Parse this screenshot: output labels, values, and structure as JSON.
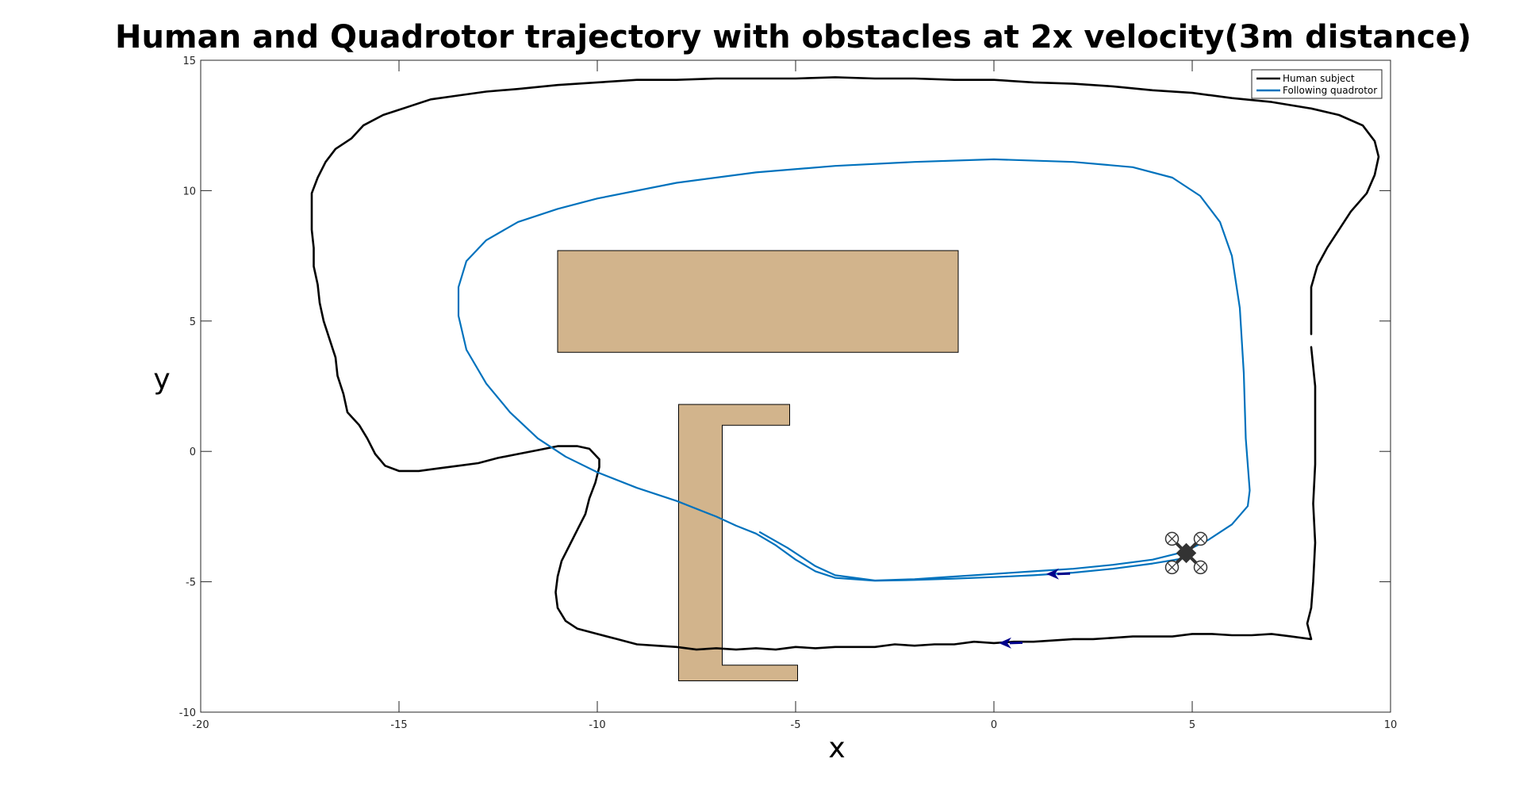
{
  "chart_data": {
    "type": "line",
    "title": "Human and Quadrotor trajectory with obstacles at 2x velocity(3m distance)",
    "xlabel": "x",
    "ylabel": "y",
    "xlim": [
      -20,
      10
    ],
    "ylim": [
      -10,
      15
    ],
    "xticks": [
      -20,
      -15,
      -10,
      -5,
      0,
      5,
      10
    ],
    "yticks": [
      -10,
      -5,
      0,
      5,
      10,
      15
    ],
    "xtick_labels": [
      "-20",
      "-15",
      "-10",
      "-5",
      "0",
      "5",
      "10"
    ],
    "ytick_labels": [
      "-10",
      "-5",
      "0",
      "5",
      "10",
      "15"
    ],
    "grid": false,
    "box": true,
    "legend_position": "top-right",
    "series": [
      {
        "name": "Human subject",
        "color": "#000000",
        "points": [
          [
            8.0,
            4.0
          ],
          [
            8.1,
            2.5
          ],
          [
            8.1,
            1.0
          ],
          [
            8.1,
            -0.5
          ],
          [
            8.05,
            -2.0
          ],
          [
            8.1,
            -3.5
          ],
          [
            8.05,
            -5.0
          ],
          [
            8.0,
            -6.0
          ],
          [
            7.9,
            -6.6
          ],
          [
            8.0,
            -7.2
          ],
          [
            7.5,
            -7.1
          ],
          [
            7.0,
            -7.0
          ],
          [
            6.5,
            -7.05
          ],
          [
            6.0,
            -7.05
          ],
          [
            5.5,
            -7.0
          ],
          [
            5.0,
            -7.0
          ],
          [
            4.5,
            -7.1
          ],
          [
            4.0,
            -7.1
          ],
          [
            3.5,
            -7.1
          ],
          [
            3.0,
            -7.15
          ],
          [
            2.5,
            -7.2
          ],
          [
            2.0,
            -7.2
          ],
          [
            1.5,
            -7.25
          ],
          [
            1.0,
            -7.3
          ],
          [
            0.5,
            -7.3
          ],
          [
            0.0,
            -7.35
          ],
          [
            -0.5,
            -7.3
          ],
          [
            -1.0,
            -7.4
          ],
          [
            -1.5,
            -7.4
          ],
          [
            -2.0,
            -7.45
          ],
          [
            -2.5,
            -7.4
          ],
          [
            -3.0,
            -7.5
          ],
          [
            -3.5,
            -7.5
          ],
          [
            -4.0,
            -7.5
          ],
          [
            -4.5,
            -7.55
          ],
          [
            -5.0,
            -7.5
          ],
          [
            -5.5,
            -7.6
          ],
          [
            -6.0,
            -7.55
          ],
          [
            -6.5,
            -7.6
          ],
          [
            -7.0,
            -7.55
          ],
          [
            -7.5,
            -7.6
          ],
          [
            -8.0,
            -7.5
          ],
          [
            -8.5,
            -7.45
          ],
          [
            -9.0,
            -7.4
          ],
          [
            -9.5,
            -7.2
          ],
          [
            -10.0,
            -7.0
          ],
          [
            -10.5,
            -6.8
          ],
          [
            -10.8,
            -6.5
          ],
          [
            -11.0,
            -6.0
          ],
          [
            -11.05,
            -5.4
          ],
          [
            -11.0,
            -4.8
          ],
          [
            -10.9,
            -4.2
          ],
          [
            -10.7,
            -3.6
          ],
          [
            -10.5,
            -3.0
          ],
          [
            -10.3,
            -2.4
          ],
          [
            -10.2,
            -1.8
          ],
          [
            -10.05,
            -1.2
          ],
          [
            -9.95,
            -0.6
          ],
          [
            -9.95,
            -0.3
          ],
          [
            -10.2,
            0.1
          ],
          [
            -10.5,
            0.2
          ],
          [
            -11.0,
            0.2
          ],
          [
            -11.5,
            0.05
          ],
          [
            -12.0,
            -0.1
          ],
          [
            -12.5,
            -0.25
          ],
          [
            -13.0,
            -0.45
          ],
          [
            -13.5,
            -0.55
          ],
          [
            -14.0,
            -0.65
          ],
          [
            -14.5,
            -0.75
          ],
          [
            -15.0,
            -0.75
          ],
          [
            -15.35,
            -0.55
          ],
          [
            -15.6,
            -0.1
          ],
          [
            -15.8,
            0.5
          ],
          [
            -16.0,
            1.0
          ],
          [
            -16.3,
            1.5
          ],
          [
            -16.4,
            2.2
          ],
          [
            -16.55,
            2.9
          ],
          [
            -16.6,
            3.6
          ],
          [
            -16.75,
            4.3
          ],
          [
            -16.9,
            5.0
          ],
          [
            -17.0,
            5.7
          ],
          [
            -17.05,
            6.4
          ],
          [
            -17.15,
            7.1
          ],
          [
            -17.15,
            7.8
          ],
          [
            -17.2,
            8.5
          ],
          [
            -17.2,
            9.2
          ],
          [
            -17.2,
            9.9
          ],
          [
            -17.05,
            10.5
          ],
          [
            -16.85,
            11.1
          ],
          [
            -16.6,
            11.6
          ],
          [
            -16.2,
            12.0
          ],
          [
            -15.9,
            12.5
          ],
          [
            -15.4,
            12.9
          ],
          [
            -14.8,
            13.2
          ],
          [
            -14.2,
            13.5
          ],
          [
            -13.5,
            13.65
          ],
          [
            -12.8,
            13.8
          ],
          [
            -12.0,
            13.9
          ],
          [
            -11.0,
            14.05
          ],
          [
            -10.0,
            14.15
          ],
          [
            -9.0,
            14.25
          ],
          [
            -8.0,
            14.25
          ],
          [
            -7.0,
            14.3
          ],
          [
            -6.0,
            14.3
          ],
          [
            -5.0,
            14.3
          ],
          [
            -4.0,
            14.35
          ],
          [
            -3.0,
            14.3
          ],
          [
            -2.0,
            14.3
          ],
          [
            -1.0,
            14.25
          ],
          [
            0.0,
            14.25
          ],
          [
            1.0,
            14.15
          ],
          [
            2.0,
            14.1
          ],
          [
            3.0,
            14.0
          ],
          [
            4.0,
            13.85
          ],
          [
            5.0,
            13.75
          ],
          [
            6.0,
            13.55
          ],
          [
            7.0,
            13.4
          ],
          [
            8.0,
            13.15
          ],
          [
            8.7,
            12.9
          ],
          [
            9.3,
            12.5
          ],
          [
            9.6,
            11.9
          ],
          [
            9.7,
            11.3
          ],
          [
            9.6,
            10.6
          ],
          [
            9.4,
            9.9
          ],
          [
            9.0,
            9.2
          ],
          [
            8.7,
            8.5
          ],
          [
            8.4,
            7.8
          ],
          [
            8.15,
            7.1
          ],
          [
            8.0,
            6.3
          ],
          [
            8.0,
            5.3
          ],
          [
            8.0,
            4.5
          ]
        ]
      },
      {
        "name": "Following quadrotor",
        "color": "#0072BD",
        "points": [
          [
            4.8,
            -4.1
          ],
          [
            4.0,
            -4.3
          ],
          [
            3.0,
            -4.5
          ],
          [
            2.0,
            -4.65
          ],
          [
            1.0,
            -4.75
          ],
          [
            0.0,
            -4.82
          ],
          [
            -1.0,
            -4.88
          ],
          [
            -2.0,
            -4.93
          ],
          [
            -3.0,
            -4.96
          ],
          [
            -4.0,
            -4.85
          ],
          [
            -4.5,
            -4.6
          ],
          [
            -5.0,
            -4.15
          ],
          [
            -5.5,
            -3.6
          ],
          [
            -6.0,
            -3.15
          ],
          [
            -6.5,
            -2.85
          ],
          [
            -7.0,
            -2.5
          ],
          [
            -8.0,
            -1.9
          ],
          [
            -9.0,
            -1.4
          ],
          [
            -10.0,
            -0.8
          ],
          [
            -10.8,
            -0.2
          ],
          [
            -11.5,
            0.5
          ],
          [
            -12.2,
            1.5
          ],
          [
            -12.8,
            2.6
          ],
          [
            -13.3,
            3.9
          ],
          [
            -13.5,
            5.2
          ],
          [
            -13.5,
            6.3
          ],
          [
            -13.3,
            7.3
          ],
          [
            -12.8,
            8.1
          ],
          [
            -12.0,
            8.8
          ],
          [
            -11.0,
            9.3
          ],
          [
            -10.0,
            9.7
          ],
          [
            -8.0,
            10.3
          ],
          [
            -6.0,
            10.7
          ],
          [
            -4.0,
            10.95
          ],
          [
            -2.0,
            11.1
          ],
          [
            0.0,
            11.2
          ],
          [
            2.0,
            11.1
          ],
          [
            3.5,
            10.9
          ],
          [
            4.5,
            10.5
          ],
          [
            5.2,
            9.8
          ],
          [
            5.7,
            8.8
          ],
          [
            6.0,
            7.5
          ],
          [
            6.2,
            5.5
          ],
          [
            6.3,
            3.0
          ],
          [
            6.35,
            0.5
          ],
          [
            6.45,
            -1.5
          ],
          [
            6.4,
            -2.1
          ],
          [
            6.0,
            -2.8
          ],
          [
            5.4,
            -3.4
          ],
          [
            4.8,
            -3.85
          ],
          [
            4.0,
            -4.15
          ],
          [
            3.0,
            -4.35
          ],
          [
            2.0,
            -4.5
          ],
          [
            1.0,
            -4.6
          ],
          [
            0.0,
            -4.7
          ],
          [
            -1.0,
            -4.8
          ],
          [
            -2.0,
            -4.9
          ],
          [
            -3.0,
            -4.95
          ],
          [
            -4.0,
            -4.75
          ],
          [
            -4.5,
            -4.4
          ],
          [
            -5.2,
            -3.7
          ],
          [
            -5.9,
            -3.1
          ]
        ]
      }
    ],
    "obstacles": [
      {
        "name": "rectangular-obstacle",
        "color": "#D2B48C",
        "polygon": [
          [
            -11.0,
            3.8
          ],
          [
            -0.9,
            3.8
          ],
          [
            -0.9,
            7.7
          ],
          [
            -11.0,
            7.7
          ]
        ]
      },
      {
        "name": "c-shaped-obstacle",
        "color": "#D2B48C",
        "polygon": [
          [
            -7.95,
            -8.8
          ],
          [
            -4.95,
            -8.8
          ],
          [
            -4.95,
            -8.2
          ],
          [
            -6.85,
            -8.2
          ],
          [
            -6.85,
            1.0
          ],
          [
            -5.15,
            1.0
          ],
          [
            -5.15,
            1.8
          ],
          [
            -7.95,
            1.8
          ]
        ]
      }
    ],
    "markers": [
      {
        "name": "human-direction-arrow",
        "color": "#00008B",
        "x": 0.4,
        "y": -7.35,
        "direction": "left"
      },
      {
        "name": "quadrotor-direction-arrow",
        "color": "#00008B",
        "x": 1.6,
        "y": -4.7,
        "direction": "left"
      },
      {
        "name": "quadrotor-icon",
        "color": "#333333",
        "x": 4.85,
        "y": -3.9
      }
    ]
  }
}
